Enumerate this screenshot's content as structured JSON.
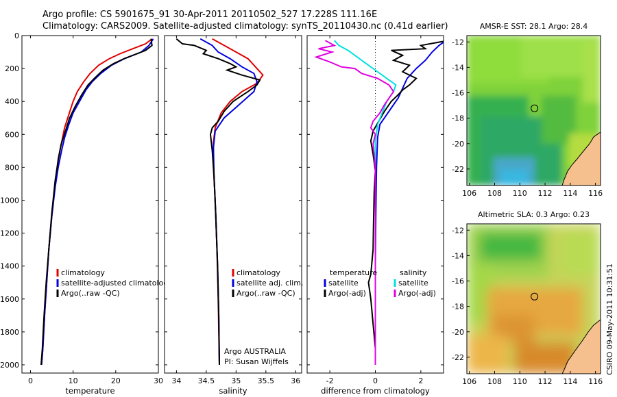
{
  "header": {
    "line1": "Argo profile: CS 5901675_91 30-Apr-2011 20110502_527 17.228S 111.16E",
    "line2": "Climatology: CARS2009. Satellite-adjusted climatology: synTS_20110430.nc (0.41d earlier)"
  },
  "credit": "CSIRO 09-May-2011 10:31:51",
  "colors": {
    "climatology": "#e00000",
    "satellite": "#0000e0",
    "argo": "#000000",
    "salinity_sat": "#00e0e0",
    "salinity_argo": "#e000e0"
  },
  "chart_data": [
    {
      "type": "line",
      "xlabel": "temperature",
      "ylim": [
        0,
        2050
      ],
      "y_reversed": true,
      "xlim": [
        -2,
        30
      ],
      "xticks": [
        "0",
        "10",
        "20",
        "30"
      ],
      "yticks": [
        "0",
        "200",
        "400",
        "600",
        "800",
        "1000",
        "1200",
        "1400",
        "1600",
        "1800",
        "2000"
      ],
      "legend": [
        "climatology",
        "satellite-adjusted climatology",
        "Argo(..raw -QC)"
      ],
      "series": [
        {
          "name": "climatology",
          "color": "#e00000",
          "points": [
            [
              28.5,
              20
            ],
            [
              27,
              50
            ],
            [
              24,
              80
            ],
            [
              21,
              110
            ],
            [
              18.5,
              140
            ],
            [
              16,
              180
            ],
            [
              14,
              230
            ],
            [
              12.5,
              280
            ],
            [
              11,
              340
            ],
            [
              10,
              400
            ],
            [
              9,
              480
            ],
            [
              8,
              560
            ],
            [
              7.3,
              650
            ],
            [
              6.5,
              750
            ],
            [
              5.8,
              900
            ],
            [
              5,
              1100
            ],
            [
              4.3,
              1300
            ],
            [
              3.8,
              1500
            ],
            [
              3.3,
              1700
            ],
            [
              2.9,
              1900
            ],
            [
              2.6,
              2000
            ]
          ]
        },
        {
          "name": "satellite-adjusted climatology",
          "color": "#0000e0",
          "points": [
            [
              28.8,
              20
            ],
            [
              27.8,
              60
            ],
            [
              26,
              100
            ],
            [
              22,
              140
            ],
            [
              19,
              180
            ],
            [
              16.5,
              230
            ],
            [
              14.5,
              280
            ],
            [
              13,
              330
            ],
            [
              11.5,
              400
            ],
            [
              10,
              470
            ],
            [
              9,
              540
            ],
            [
              8,
              620
            ],
            [
              7.3,
              700
            ],
            [
              6.5,
              800
            ],
            [
              5.8,
              920
            ],
            [
              5,
              1100
            ],
            [
              4.3,
              1300
            ],
            [
              3.8,
              1500
            ],
            [
              3.3,
              1700
            ],
            [
              2.9,
              1900
            ],
            [
              2.6,
              2000
            ]
          ]
        },
        {
          "name": "Argo(..raw -QC)",
          "color": "#000000",
          "points": [
            [
              28.3,
              20
            ],
            [
              28.5,
              60
            ],
            [
              27,
              90
            ],
            [
              25,
              110
            ],
            [
              22,
              140
            ],
            [
              19.5,
              170
            ],
            [
              17,
              210
            ],
            [
              15,
              260
            ],
            [
              13.5,
              300
            ],
            [
              12,
              360
            ],
            [
              10.5,
              430
            ],
            [
              9.2,
              500
            ],
            [
              8.2,
              580
            ],
            [
              7.2,
              660
            ],
            [
              6.6,
              740
            ],
            [
              5.8,
              880
            ],
            [
              5,
              1080
            ],
            [
              4.3,
              1300
            ],
            [
              3.7,
              1500
            ],
            [
              3.2,
              1700
            ],
            [
              2.8,
              1900
            ],
            [
              2.5,
              2000
            ]
          ]
        }
      ]
    },
    {
      "type": "line",
      "xlabel": "salinity",
      "ylim": [
        0,
        2050
      ],
      "y_reversed": true,
      "xlim": [
        33.8,
        36.1
      ],
      "xticks": [
        "34",
        "34.5",
        "35",
        "35.5",
        "36"
      ],
      "legend": [
        "climatology",
        "satellite adj. clim.",
        "Argo(..raw -QC)"
      ],
      "annotation": [
        "Argo AUSTRALIA",
        "PI: Susan Wijffels"
      ],
      "series": [
        {
          "name": "climatology",
          "color": "#e00000",
          "points": [
            [
              34.6,
              20
            ],
            [
              34.8,
              60
            ],
            [
              35.0,
              100
            ],
            [
              35.2,
              140
            ],
            [
              35.35,
              200
            ],
            [
              35.45,
              240
            ],
            [
              35.35,
              290
            ],
            [
              35.1,
              340
            ],
            [
              34.9,
              400
            ],
            [
              34.75,
              470
            ],
            [
              34.65,
              560
            ],
            [
              34.62,
              650
            ],
            [
              34.62,
              800
            ],
            [
              34.65,
              1000
            ],
            [
              34.68,
              1300
            ],
            [
              34.7,
              1600
            ],
            [
              34.72,
              2000
            ]
          ]
        },
        {
          "name": "satellite adj. clim.",
          "color": "#0000e0",
          "points": [
            [
              34.4,
              20
            ],
            [
              34.6,
              60
            ],
            [
              34.7,
              100
            ],
            [
              34.9,
              140
            ],
            [
              35.1,
              190
            ],
            [
              35.3,
              230
            ],
            [
              35.35,
              280
            ],
            [
              35.3,
              340
            ],
            [
              35.05,
              420
            ],
            [
              34.8,
              500
            ],
            [
              34.65,
              580
            ],
            [
              34.62,
              680
            ],
            [
              34.63,
              850
            ],
            [
              34.66,
              1100
            ],
            [
              34.69,
              1400
            ],
            [
              34.71,
              1700
            ],
            [
              34.72,
              2000
            ]
          ]
        },
        {
          "name": "Argo(..raw -QC)",
          "color": "#000000",
          "points": [
            [
              34.0,
              20
            ],
            [
              34.1,
              50
            ],
            [
              34.3,
              60
            ],
            [
              34.5,
              90
            ],
            [
              34.45,
              110
            ],
            [
              34.7,
              140
            ],
            [
              34.9,
              170
            ],
            [
              35.0,
              190
            ],
            [
              34.85,
              210
            ],
            [
              35.1,
              240
            ],
            [
              35.4,
              270
            ],
            [
              35.35,
              300
            ],
            [
              35.2,
              340
            ],
            [
              34.95,
              400
            ],
            [
              34.8,
              460
            ],
            [
              34.7,
              520
            ],
            [
              34.6,
              560
            ],
            [
              34.57,
              600
            ],
            [
              34.6,
              700
            ],
            [
              34.63,
              850
            ],
            [
              34.66,
              1100
            ],
            [
              34.69,
              1400
            ],
            [
              34.71,
              1700
            ],
            [
              34.72,
              2000
            ]
          ]
        }
      ]
    },
    {
      "type": "line",
      "xlabel": "difference from climatology",
      "ylim": [
        0,
        2050
      ],
      "y_reversed": true,
      "xlim": [
        -3,
        3
      ],
      "xticks": [
        "-2",
        "0",
        "2"
      ],
      "legend_temperature": {
        "title": "temperature",
        "items": [
          "satellite",
          "Argo(-adj)"
        ]
      },
      "legend_salinity": {
        "title": "salinity",
        "items": [
          "satellite",
          "Argo(-adj)"
        ]
      },
      "series": [
        {
          "name": "temperature satellite",
          "color": "#0000e0",
          "points": [
            [
              3.2,
              20
            ],
            [
              2.8,
              60
            ],
            [
              2.5,
              100
            ],
            [
              2.2,
              150
            ],
            [
              1.8,
              200
            ],
            [
              1.4,
              260
            ],
            [
              1.2,
              320
            ],
            [
              1.0,
              380
            ],
            [
              0.8,
              420
            ],
            [
              0.5,
              480
            ],
            [
              0.2,
              540
            ],
            [
              0.1,
              620
            ],
            [
              0.05,
              800
            ],
            [
              0.02,
              1100
            ],
            [
              0.0,
              1400
            ],
            [
              0.0,
              2000
            ]
          ]
        },
        {
          "name": "temperature Argo(-adj)",
          "color": "#000000",
          "points": [
            [
              3.2,
              30
            ],
            [
              2.0,
              60
            ],
            [
              2.2,
              80
            ],
            [
              0.7,
              90
            ],
            [
              1.2,
              120
            ],
            [
              0.8,
              150
            ],
            [
              1.5,
              180
            ],
            [
              1.2,
              220
            ],
            [
              1.8,
              260
            ],
            [
              1.5,
              300
            ],
            [
              1.2,
              330
            ],
            [
              1.0,
              360
            ],
            [
              0.7,
              400
            ],
            [
              0.4,
              460
            ],
            [
              0.15,
              520
            ],
            [
              -0.1,
              580
            ],
            [
              -0.2,
              640
            ],
            [
              -0.1,
              720
            ],
            [
              0.0,
              820
            ],
            [
              -0.05,
              950
            ],
            [
              -0.08,
              1150
            ],
            [
              -0.1,
              1300
            ],
            [
              -0.2,
              1450
            ],
            [
              -0.3,
              1500
            ],
            [
              -0.2,
              1600
            ],
            [
              -0.1,
              1750
            ],
            [
              0.0,
              1900
            ],
            [
              0.0,
              2000
            ]
          ]
        },
        {
          "name": "salinity satellite",
          "color": "#00e0e0",
          "points": [
            [
              -1.8,
              30
            ],
            [
              -1.6,
              60
            ],
            [
              -1.2,
              90
            ],
            [
              -0.8,
              130
            ],
            [
              -0.4,
              170
            ],
            [
              0.0,
              210
            ],
            [
              0.4,
              250
            ],
            [
              0.9,
              300
            ],
            [
              0.8,
              340
            ],
            [
              0.5,
              400
            ],
            [
              0.3,
              470
            ],
            [
              0.1,
              540
            ],
            [
              0.0,
              640
            ],
            [
              0.0,
              800
            ],
            [
              0.0,
              1200
            ],
            [
              0.0,
              1600
            ],
            [
              0.0,
              2000
            ]
          ]
        },
        {
          "name": "salinity Argo(-adj)",
          "color": "#e000e0",
          "points": [
            [
              -2.2,
              30
            ],
            [
              -1.8,
              60
            ],
            [
              -2.5,
              80
            ],
            [
              -1.9,
              100
            ],
            [
              -2.6,
              130
            ],
            [
              -2.0,
              160
            ],
            [
              -1.5,
              190
            ],
            [
              -0.9,
              200
            ],
            [
              -0.6,
              230
            ],
            [
              0.1,
              260
            ],
            [
              0.6,
              300
            ],
            [
              0.8,
              340
            ],
            [
              0.6,
              380
            ],
            [
              0.4,
              420
            ],
            [
              0.2,
              470
            ],
            [
              -0.1,
              520
            ],
            [
              -0.2,
              560
            ],
            [
              0.0,
              600
            ],
            [
              -0.1,
              660
            ],
            [
              0.0,
              800
            ],
            [
              0.0,
              1000
            ],
            [
              0.0,
              2000
            ]
          ]
        }
      ]
    },
    {
      "type": "heatmap",
      "title": "AMSR-E SST: 28.1 Argo: 28.4",
      "xlim": [
        105.8,
        116.4
      ],
      "ylim": [
        -23.3,
        -11.5
      ],
      "xticks": [
        "106",
        "108",
        "110",
        "112",
        "114",
        "116"
      ],
      "yticks": [
        "-12",
        "-14",
        "-16",
        "-18",
        "-20",
        "-22"
      ],
      "marker": [
        111.16,
        -17.228
      ]
    },
    {
      "type": "heatmap",
      "title": "Altimetric SLA: 0.3 Argo: 0.23",
      "xlim": [
        105.8,
        116.4
      ],
      "ylim": [
        -23.3,
        -11.5
      ],
      "xticks": [
        "106",
        "108",
        "110",
        "112",
        "114",
        "116"
      ],
      "yticks": [
        "-12",
        "-14",
        "-16",
        "-18",
        "-20",
        "-22"
      ],
      "marker": [
        111.16,
        -17.228
      ]
    }
  ]
}
